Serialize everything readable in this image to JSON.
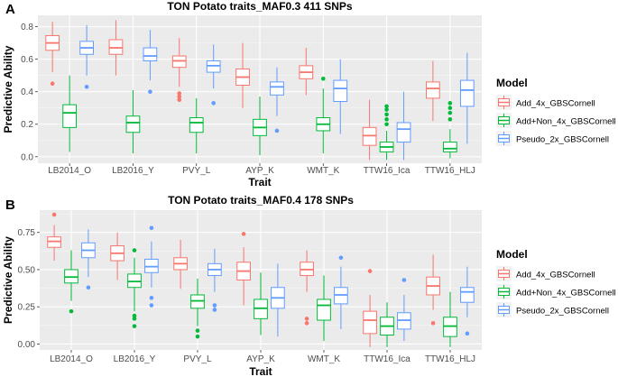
{
  "model_colors": {
    "Add_4x_GBSCornell": "#F8766D",
    "Add+Non_4x_GBSCornell": "#00BA38",
    "Pseudo_2x_GBSCornell": "#619CFF"
  },
  "chart_data": [
    {
      "type": "boxplot",
      "panel_label": "A",
      "title": "TON Potato traits_MAF0.3 411 SNPs",
      "xlabel": "Trait",
      "ylabel": "Predictive Ability",
      "ylim": [
        -0.04,
        0.87
      ],
      "yticks": [
        0.0,
        0.2,
        0.4,
        0.6,
        0.8
      ],
      "ytick_labels": [
        "0.0",
        "0.2",
        "0.4",
        "0.6",
        "0.8"
      ],
      "grid": true,
      "legend": {
        "title": "Model",
        "position": "right",
        "entries": [
          "Add_4x_GBSCornell",
          "Add+Non_4x_GBSCornell",
          "Pseudo_2x_GBSCornell"
        ]
      },
      "categories": [
        "LB2014_O",
        "LB2016_Y",
        "PVY_L",
        "AYP_K",
        "WMT_K",
        "TTW16_Ica",
        "TTW16_HLJ"
      ],
      "series": [
        {
          "name": "Add_4x_GBSCornell",
          "boxes": [
            {
              "min": 0.52,
              "q1": 0.655,
              "median": 0.7,
              "q3": 0.745,
              "max": 0.83,
              "outliers": [
                0.45
              ]
            },
            {
              "min": 0.5,
              "q1": 0.63,
              "median": 0.67,
              "q3": 0.72,
              "max": 0.84,
              "outliers": []
            },
            {
              "min": 0.43,
              "q1": 0.55,
              "median": 0.59,
              "q3": 0.62,
              "max": 0.73,
              "outliers": [
                0.35,
                0.37,
                0.39
              ]
            },
            {
              "min": 0.3,
              "q1": 0.44,
              "median": 0.49,
              "q3": 0.54,
              "max": 0.7,
              "outliers": []
            },
            {
              "min": 0.38,
              "q1": 0.48,
              "median": 0.52,
              "q3": 0.56,
              "max": 0.67,
              "outliers": []
            },
            {
              "min": -0.02,
              "q1": 0.07,
              "median": 0.13,
              "q3": 0.18,
              "max": 0.35,
              "outliers": []
            },
            {
              "min": 0.22,
              "q1": 0.36,
              "median": 0.42,
              "q3": 0.46,
              "max": 0.59,
              "outliers": []
            }
          ]
        },
        {
          "name": "Add+Non_4x_GBSCornell",
          "boxes": [
            {
              "min": 0.03,
              "q1": 0.18,
              "median": 0.27,
              "q3": 0.32,
              "max": 0.5,
              "outliers": []
            },
            {
              "min": 0.02,
              "q1": 0.15,
              "median": 0.21,
              "q3": 0.25,
              "max": 0.41,
              "outliers": []
            },
            {
              "min": 0.02,
              "q1": 0.15,
              "median": 0.21,
              "q3": 0.24,
              "max": 0.36,
              "outliers": []
            },
            {
              "min": 0.01,
              "q1": 0.13,
              "median": 0.18,
              "q3": 0.23,
              "max": 0.37,
              "outliers": []
            },
            {
              "min": 0.02,
              "q1": 0.16,
              "median": 0.2,
              "q3": 0.24,
              "max": 0.42,
              "outliers": [
                0.48
              ]
            },
            {
              "min": -0.02,
              "q1": 0.03,
              "median": 0.06,
              "q3": 0.09,
              "max": 0.16,
              "outliers": [
                0.2,
                0.23,
                0.26,
                0.29,
                0.31
              ]
            },
            {
              "min": -0.01,
              "q1": 0.03,
              "median": 0.05,
              "q3": 0.09,
              "max": 0.17,
              "outliers": [
                0.23,
                0.27,
                0.3,
                0.33
              ]
            }
          ]
        },
        {
          "name": "Pseudo_2x_GBSCornell",
          "boxes": [
            {
              "min": 0.5,
              "q1": 0.63,
              "median": 0.67,
              "q3": 0.71,
              "max": 0.81,
              "outliers": [
                0.43
              ]
            },
            {
              "min": 0.47,
              "q1": 0.59,
              "median": 0.62,
              "q3": 0.67,
              "max": 0.78,
              "outliers": [
                0.4
              ]
            },
            {
              "min": 0.42,
              "q1": 0.52,
              "median": 0.56,
              "q3": 0.59,
              "max": 0.69,
              "outliers": [
                0.33
              ]
            },
            {
              "min": 0.25,
              "q1": 0.38,
              "median": 0.43,
              "q3": 0.46,
              "max": 0.55,
              "outliers": [
                0.16
              ]
            },
            {
              "min": 0.14,
              "q1": 0.34,
              "median": 0.42,
              "q3": 0.47,
              "max": 0.6,
              "outliers": []
            },
            {
              "min": -0.02,
              "q1": 0.09,
              "median": 0.17,
              "q3": 0.21,
              "max": 0.4,
              "outliers": []
            },
            {
              "min": 0.08,
              "q1": 0.31,
              "median": 0.41,
              "q3": 0.47,
              "max": 0.64,
              "outliers": []
            }
          ]
        }
      ]
    },
    {
      "type": "boxplot",
      "panel_label": "B",
      "title": "TON Potato traits_MAF0.4 178 SNPs",
      "xlabel": "Trait",
      "ylabel": "Predictive Ability",
      "ylim": [
        -0.04,
        0.9
      ],
      "yticks": [
        0.0,
        0.25,
        0.5,
        0.75
      ],
      "ytick_labels": [
        "0.00",
        "0.25",
        "0.50",
        "0.75"
      ],
      "grid": true,
      "legend": {
        "title": "Model",
        "position": "right",
        "entries": [
          "Add_4x_GBSCornell",
          "Add+Non_4x_GBSCornell",
          "Pseudo_2x_GBSCornell"
        ]
      },
      "categories": [
        "LB2014_O",
        "LB2016_Y",
        "PVY_L",
        "AYP_K",
        "WMT_K",
        "TTW16_Ica",
        "TTW16_HLJ"
      ],
      "series": [
        {
          "name": "Add_4x_GBSCornell",
          "boxes": [
            {
              "min": 0.56,
              "q1": 0.65,
              "median": 0.69,
              "q3": 0.72,
              "max": 0.8,
              "outliers": [
                0.87
              ]
            },
            {
              "min": 0.43,
              "q1": 0.56,
              "median": 0.61,
              "q3": 0.66,
              "max": 0.75,
              "outliers": []
            },
            {
              "min": 0.37,
              "q1": 0.5,
              "median": 0.54,
              "q3": 0.58,
              "max": 0.7,
              "outliers": []
            },
            {
              "min": 0.26,
              "q1": 0.43,
              "median": 0.49,
              "q3": 0.55,
              "max": 0.65,
              "outliers": [
                0.74
              ]
            },
            {
              "min": 0.35,
              "q1": 0.46,
              "median": 0.5,
              "q3": 0.55,
              "max": 0.63,
              "outliers": [
                0.14,
                0.17
              ]
            },
            {
              "min": -0.02,
              "q1": 0.07,
              "median": 0.16,
              "q3": 0.22,
              "max": 0.33,
              "outliers": [
                0.49
              ]
            },
            {
              "min": 0.23,
              "q1": 0.33,
              "median": 0.39,
              "q3": 0.45,
              "max": 0.6,
              "outliers": [
                0.14
              ]
            }
          ]
        },
        {
          "name": "Add+Non_4x_GBSCornell",
          "boxes": [
            {
              "min": 0.29,
              "q1": 0.41,
              "median": 0.45,
              "q3": 0.5,
              "max": 0.63,
              "outliers": [
                0.22
              ]
            },
            {
              "min": 0.22,
              "q1": 0.38,
              "median": 0.42,
              "q3": 0.47,
              "max": 0.58,
              "outliers": [
                0.12,
                0.17,
                0.19,
                0.63
              ]
            },
            {
              "min": 0.12,
              "q1": 0.24,
              "median": 0.29,
              "q3": 0.33,
              "max": 0.44,
              "outliers": [
                0.05,
                0.09
              ]
            },
            {
              "min": 0.06,
              "q1": 0.17,
              "median": 0.24,
              "q3": 0.3,
              "max": 0.48,
              "outliers": []
            },
            {
              "min": 0.02,
              "q1": 0.16,
              "median": 0.26,
              "q3": 0.3,
              "max": 0.46,
              "outliers": []
            },
            {
              "min": -0.02,
              "q1": 0.06,
              "median": 0.12,
              "q3": 0.18,
              "max": 0.28,
              "outliers": []
            },
            {
              "min": -0.02,
              "q1": 0.05,
              "median": 0.12,
              "q3": 0.18,
              "max": 0.35,
              "outliers": []
            }
          ]
        },
        {
          "name": "Pseudo_2x_GBSCornell",
          "boxes": [
            {
              "min": 0.45,
              "q1": 0.58,
              "median": 0.63,
              "q3": 0.68,
              "max": 0.77,
              "outliers": [
                0.38
              ]
            },
            {
              "min": 0.38,
              "q1": 0.48,
              "median": 0.52,
              "q3": 0.57,
              "max": 0.69,
              "outliers": [
                0.26,
                0.31,
                0.78
              ]
            },
            {
              "min": 0.35,
              "q1": 0.46,
              "median": 0.5,
              "q3": 0.54,
              "max": 0.64,
              "outliers": [
                0.23,
                0.26
              ]
            },
            {
              "min": 0.05,
              "q1": 0.24,
              "median": 0.31,
              "q3": 0.38,
              "max": 0.54,
              "outliers": []
            },
            {
              "min": 0.1,
              "q1": 0.27,
              "median": 0.33,
              "q3": 0.38,
              "max": 0.52,
              "outliers": [
                0.58
              ]
            },
            {
              "min": 0.02,
              "q1": 0.1,
              "median": 0.16,
              "q3": 0.21,
              "max": 0.33,
              "outliers": [
                0.43
              ]
            },
            {
              "min": 0.18,
              "q1": 0.28,
              "median": 0.35,
              "q3": 0.38,
              "max": 0.52,
              "outliers": [
                0.07
              ]
            }
          ]
        }
      ]
    }
  ]
}
